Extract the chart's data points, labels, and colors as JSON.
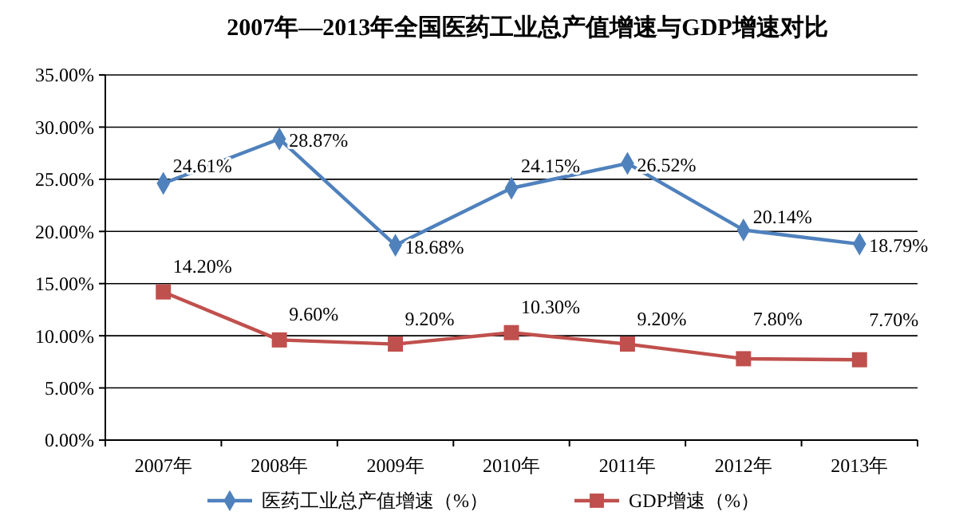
{
  "chart_data": {
    "type": "line",
    "title": "2007年—2013年全国医药工业总产值增速与GDP增速对比",
    "categories": [
      "2007年",
      "2008年",
      "2009年",
      "2010年",
      "2011年",
      "2012年",
      "2013年"
    ],
    "series": [
      {
        "name": "医药工业总产值增速（%）",
        "color": "#4f81bd",
        "marker": "diamond",
        "values": [
          24.61,
          28.87,
          18.68,
          24.15,
          26.52,
          20.14,
          18.79
        ],
        "value_labels": [
          "24.61%",
          "28.87%",
          "18.68%",
          "24.15%",
          "26.52%",
          "20.14%",
          "18.79%"
        ]
      },
      {
        "name": "GDP增速（%）",
        "color": "#c0504d",
        "marker": "square",
        "values": [
          14.2,
          9.6,
          9.2,
          10.3,
          9.2,
          7.8,
          7.7
        ],
        "value_labels": [
          "14.20%",
          "9.60%",
          "9.20%",
          "10.30%",
          "9.20%",
          "7.80%",
          "7.70%"
        ]
      }
    ],
    "ylim": [
      0,
      35
    ],
    "yticks": [
      {
        "value": 0,
        "label": "0.00%"
      },
      {
        "value": 5,
        "label": "5.00%"
      },
      {
        "value": 10,
        "label": "10.00%"
      },
      {
        "value": 15,
        "label": "15.00%"
      },
      {
        "value": 20,
        "label": "20.00%"
      },
      {
        "value": 25,
        "label": "25.00%"
      },
      {
        "value": 30,
        "label": "30.00%"
      },
      {
        "value": 35,
        "label": "35.00%"
      }
    ],
    "grid": "y",
    "legend": "bottom",
    "line_style": "solid"
  }
}
